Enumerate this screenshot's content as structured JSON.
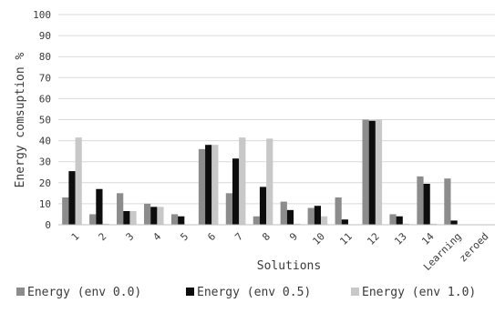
{
  "chart_data": {
    "type": "bar",
    "categories": [
      "1",
      "2",
      "3",
      "4",
      "5",
      "6",
      "7",
      "8",
      "9",
      "10",
      "11",
      "12",
      "13",
      "14",
      "Learning",
      "zeroed"
    ],
    "series": [
      {
        "name": "Energy (env 0.0)",
        "color": "#8c8c8c",
        "values": [
          13,
          5,
          15,
          10,
          5,
          36,
          15,
          4,
          11,
          8,
          13,
          50,
          5,
          23,
          22,
          0
        ]
      },
      {
        "name": "Energy (env 0.5)",
        "color": "#0d0d0d",
        "values": [
          25.5,
          17,
          6.5,
          8.5,
          4,
          38,
          31.5,
          18,
          7,
          9,
          2.5,
          49.5,
          4,
          19.5,
          2,
          0
        ]
      },
      {
        "name": "Energy (env 1.0)",
        "color": "#c8c8c8",
        "values": [
          41.5,
          0.5,
          6.5,
          8.5,
          0,
          38,
          41.5,
          41,
          0.5,
          4,
          0,
          50,
          0.5,
          0.5,
          0,
          0
        ]
      }
    ],
    "xlabel": "Solutions",
    "ylabel": "Energy comsuption %",
    "ylim": [
      0,
      100
    ],
    "yticks": [
      "0",
      "10",
      "20",
      "30",
      "40",
      "50",
      "60",
      "70",
      "80",
      "90",
      "100"
    ],
    "grid": true,
    "legend_position": "bottom"
  }
}
